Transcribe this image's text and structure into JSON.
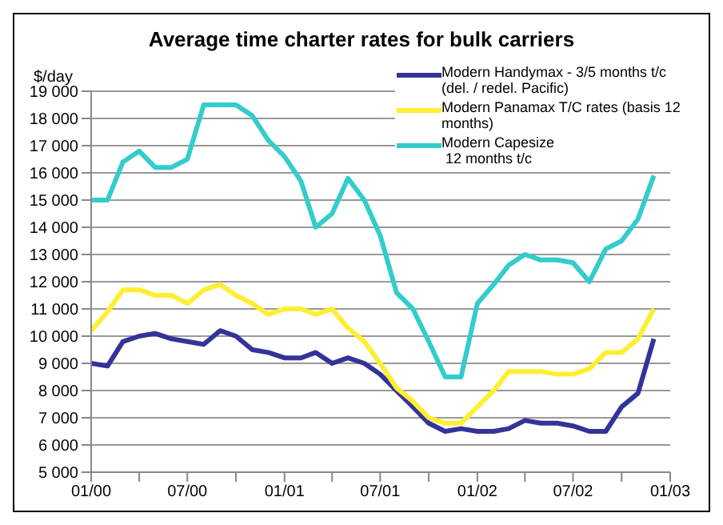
{
  "chart_data": {
    "type": "line",
    "title": "Average time charter rates for bulk carriers",
    "ylabel": "$/day",
    "x": [
      "2000-01",
      "2000-02",
      "2000-03",
      "2000-04",
      "2000-05",
      "2000-06",
      "2000-07",
      "2000-08",
      "2000-09",
      "2000-10",
      "2000-11",
      "2000-12",
      "2001-01",
      "2001-02",
      "2001-03",
      "2001-04",
      "2001-05",
      "2001-06",
      "2001-07",
      "2001-08",
      "2001-09",
      "2001-10",
      "2001-11",
      "2001-12",
      "2002-01",
      "2002-02",
      "2002-03",
      "2002-04",
      "2002-05",
      "2002-06",
      "2002-07",
      "2002-08",
      "2002-09",
      "2002-10",
      "2002-11",
      "2002-12"
    ],
    "series": [
      {
        "name": "Modern Handymax - 3/5 months t/c (del. / redel. Pacific)",
        "color": "#333399",
        "values": [
          9000,
          8900,
          9800,
          10000,
          10100,
          9900,
          9800,
          9700,
          10200,
          10000,
          9500,
          9400,
          9200,
          9200,
          9400,
          9000,
          9200,
          9000,
          8600,
          8000,
          7400,
          6800,
          6500,
          6600,
          6500,
          6500,
          6600,
          6900,
          6800,
          6800,
          6700,
          6500,
          6500,
          7400,
          7900,
          9900
        ]
      },
      {
        "name": "Modern Panamax T/C rates (basis 12 months)",
        "color": "#ffee33",
        "values": [
          10200,
          10900,
          11700,
          11700,
          11500,
          11500,
          11200,
          11700,
          11900,
          11500,
          11200,
          10800,
          11000,
          11000,
          10800,
          11000,
          10300,
          9800,
          9000,
          8100,
          7600,
          7000,
          6800,
          6800,
          7400,
          8000,
          8700,
          8700,
          8700,
          8600,
          8600,
          8800,
          9400,
          9400,
          9900,
          11000
        ]
      },
      {
        "name": "Modern Capesize\n 12 months t/c",
        "color": "#33cccc",
        "values": [
          15000,
          15000,
          16400,
          16800,
          16200,
          16200,
          16500,
          18500,
          18500,
          18500,
          18100,
          17200,
          16600,
          15700,
          14000,
          14500,
          15800,
          15000,
          13700,
          11600,
          11000,
          9800,
          8500,
          8500,
          11200,
          11900,
          12600,
          13000,
          12800,
          12800,
          12700,
          12000,
          13200,
          13500,
          14300,
          15900
        ]
      }
    ],
    "xlim": [
      "2000-01",
      "2003-01"
    ],
    "xticks": [
      {
        "value": "2000-01",
        "label": "01/00"
      },
      {
        "value": "2000-04",
        "label": null
      },
      {
        "value": "2000-07",
        "label": "07/00"
      },
      {
        "value": "2000-10",
        "label": null
      },
      {
        "value": "2001-01",
        "label": "01/01"
      },
      {
        "value": "2001-04",
        "label": null
      },
      {
        "value": "2001-07",
        "label": "07/01"
      },
      {
        "value": "2001-10",
        "label": null
      },
      {
        "value": "2002-01",
        "label": "01/02"
      },
      {
        "value": "2002-04",
        "label": null
      },
      {
        "value": "2002-07",
        "label": "07/02"
      },
      {
        "value": "2002-10",
        "label": null
      },
      {
        "value": "2003-01",
        "label": "01/03"
      }
    ],
    "ylim": [
      5000,
      19000
    ],
    "yticks": [
      {
        "value": 5000,
        "label": "5 000"
      },
      {
        "value": 6000,
        "label": "6 000"
      },
      {
        "value": 7000,
        "label": "7 000"
      },
      {
        "value": 8000,
        "label": "8 000"
      },
      {
        "value": 9000,
        "label": "9 000"
      },
      {
        "value": 10000,
        "label": "10 000"
      },
      {
        "value": 11000,
        "label": "11 000"
      },
      {
        "value": 12000,
        "label": "12 000"
      },
      {
        "value": 13000,
        "label": "13 000"
      },
      {
        "value": 14000,
        "label": "14 000"
      },
      {
        "value": 15000,
        "label": "15 000"
      },
      {
        "value": 16000,
        "label": "16 000"
      },
      {
        "value": 17000,
        "label": "17 000"
      },
      {
        "value": 18000,
        "label": "18 000"
      },
      {
        "value": 19000,
        "label": "19 000"
      }
    ],
    "grid": "y",
    "legend": "top right",
    "marker": "none",
    "line_style": "solid"
  }
}
